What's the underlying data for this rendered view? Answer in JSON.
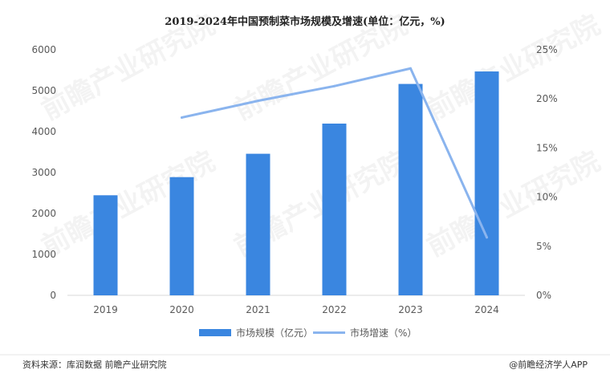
{
  "chart_data": {
    "type": "bar",
    "title": "2019-2024年中国预制菜市场规模及增速(单位：亿元，%)",
    "categories": [
      "2019",
      "2020",
      "2021",
      "2022",
      "2023",
      "2024"
    ],
    "series": [
      {
        "name": "市场规模（亿元）",
        "type": "bar",
        "axis": "left",
        "color": "#3a86e0",
        "values": [
          2445,
          2888,
          3459,
          4196,
          5165,
          5470
        ]
      },
      {
        "name": "市场增速（%）",
        "type": "line",
        "axis": "right",
        "color": "#8ab4ee",
        "values": [
          null,
          18.1,
          19.8,
          21.3,
          23.1,
          5.9
        ]
      }
    ],
    "y_left": {
      "min": 0,
      "max": 6000,
      "ticks": [
        "0",
        "1000",
        "2000",
        "3000",
        "4000",
        "5000",
        "6000"
      ]
    },
    "y_right": {
      "min": 0,
      "max": 25,
      "ticks": [
        "0%",
        "5%",
        "10%",
        "15%",
        "20%",
        "25%"
      ]
    },
    "grid": false,
    "legend_position": "bottom"
  },
  "footer": {
    "source": "资料来源：库润数据 前瞻产业研究院",
    "brand": "@前瞻经济学人APP"
  },
  "watermark": {
    "text": "前瞻产业研究院"
  }
}
